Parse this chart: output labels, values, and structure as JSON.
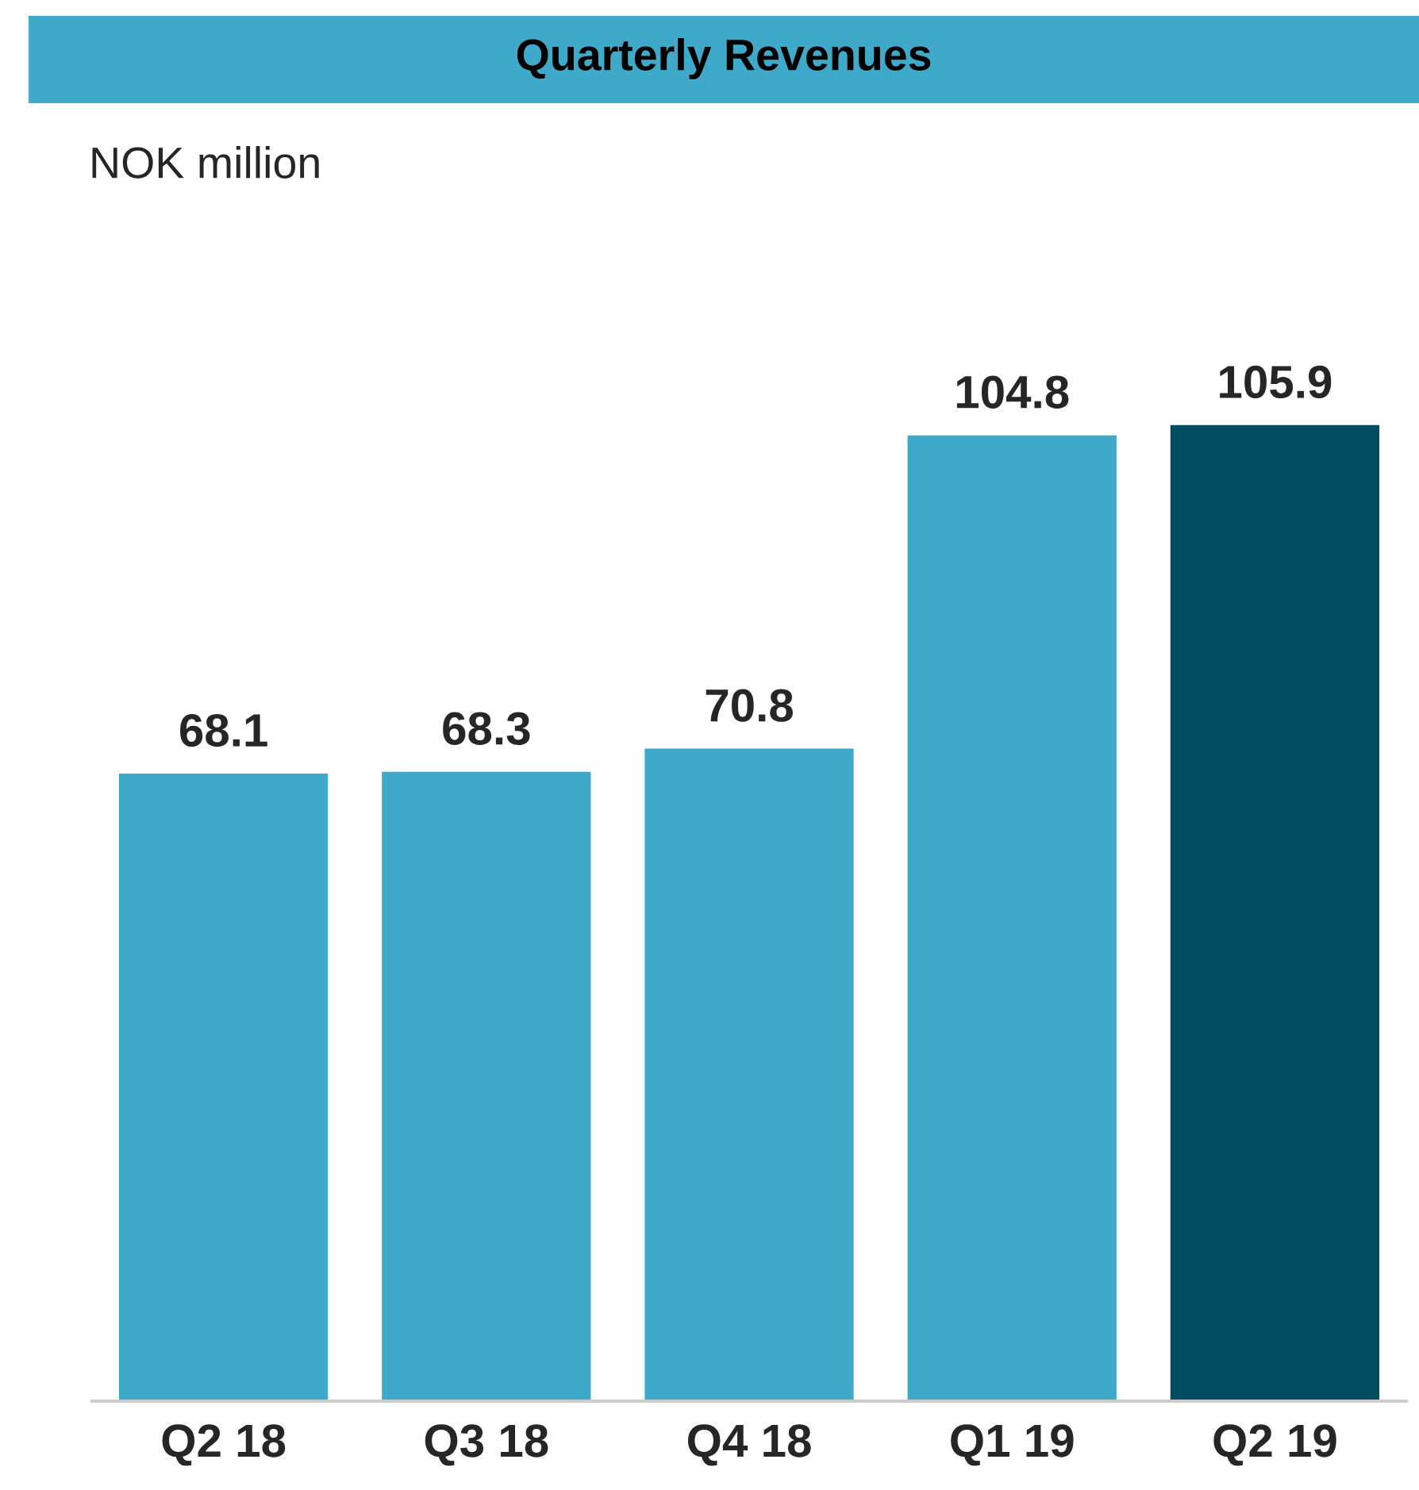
{
  "chart_data": {
    "type": "bar",
    "title": "Quarterly Revenues",
    "subtitle": "NOK million",
    "categories": [
      "Q2 18",
      "Q3 18",
      "Q4 18",
      "Q1 19",
      "Q2 19"
    ],
    "values": [
      68.1,
      68.3,
      70.8,
      104.8,
      105.9
    ],
    "colors": [
      "#3fa9c9",
      "#3fa9c9",
      "#3fa9c9",
      "#3fa9c9",
      "#034d63"
    ],
    "data_labels": true,
    "grid": false,
    "legend": false
  }
}
